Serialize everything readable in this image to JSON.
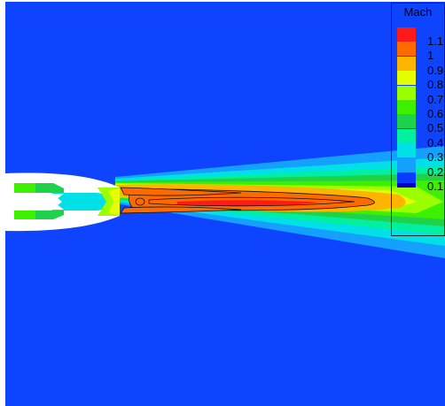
{
  "legend": {
    "title": "Mach",
    "levels": [
      {
        "label": "1.1",
        "color": "#ff1a1a"
      },
      {
        "label": "1",
        "color": "#ff6a00"
      },
      {
        "label": "0.9",
        "color": "#ffb400"
      },
      {
        "label": "0.8",
        "color": "#e6ff00"
      },
      {
        "label": "0.7",
        "color": "#9cff00"
      },
      {
        "label": "0.6",
        "color": "#3cf000"
      },
      {
        "label": "0.5",
        "color": "#1ed24a"
      },
      {
        "label": "0.4",
        "color": "#00f0a0"
      },
      {
        "label": "0.3",
        "color": "#00e0e6"
      },
      {
        "label": "0.2",
        "color": "#14a0ff"
      },
      {
        "label": "0.1",
        "color": "#0a3cff"
      }
    ],
    "low_color": "#0000cc"
  },
  "colors": {
    "background_field": "#0f44ff",
    "page": "#ffffff"
  }
}
